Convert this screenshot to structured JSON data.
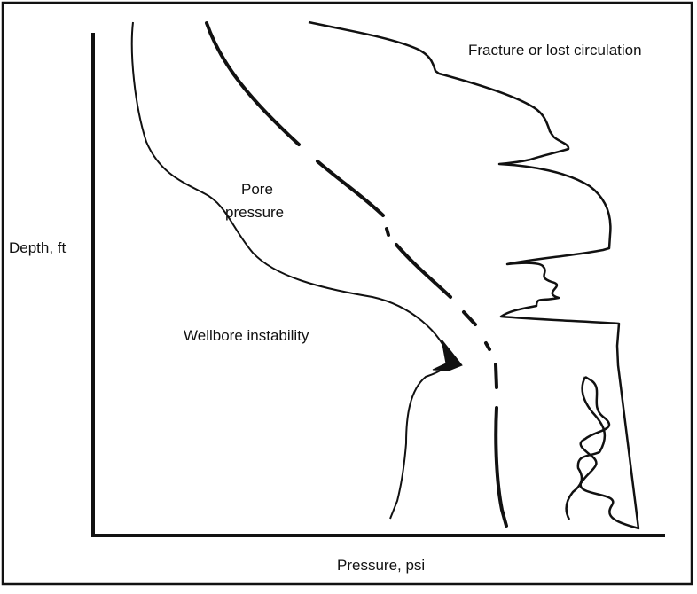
{
  "diagram": {
    "axes": {
      "x_label": "Pressure, psi",
      "y_label": "Depth, ft"
    },
    "annotations": {
      "fracture": "Fracture or lost circulation",
      "pore_line1": "Pore",
      "pore_line2": "pressure",
      "wellbore": "Wellbore instability"
    },
    "colors": {
      "ink": "#111111",
      "background": "#ffffff"
    }
  }
}
